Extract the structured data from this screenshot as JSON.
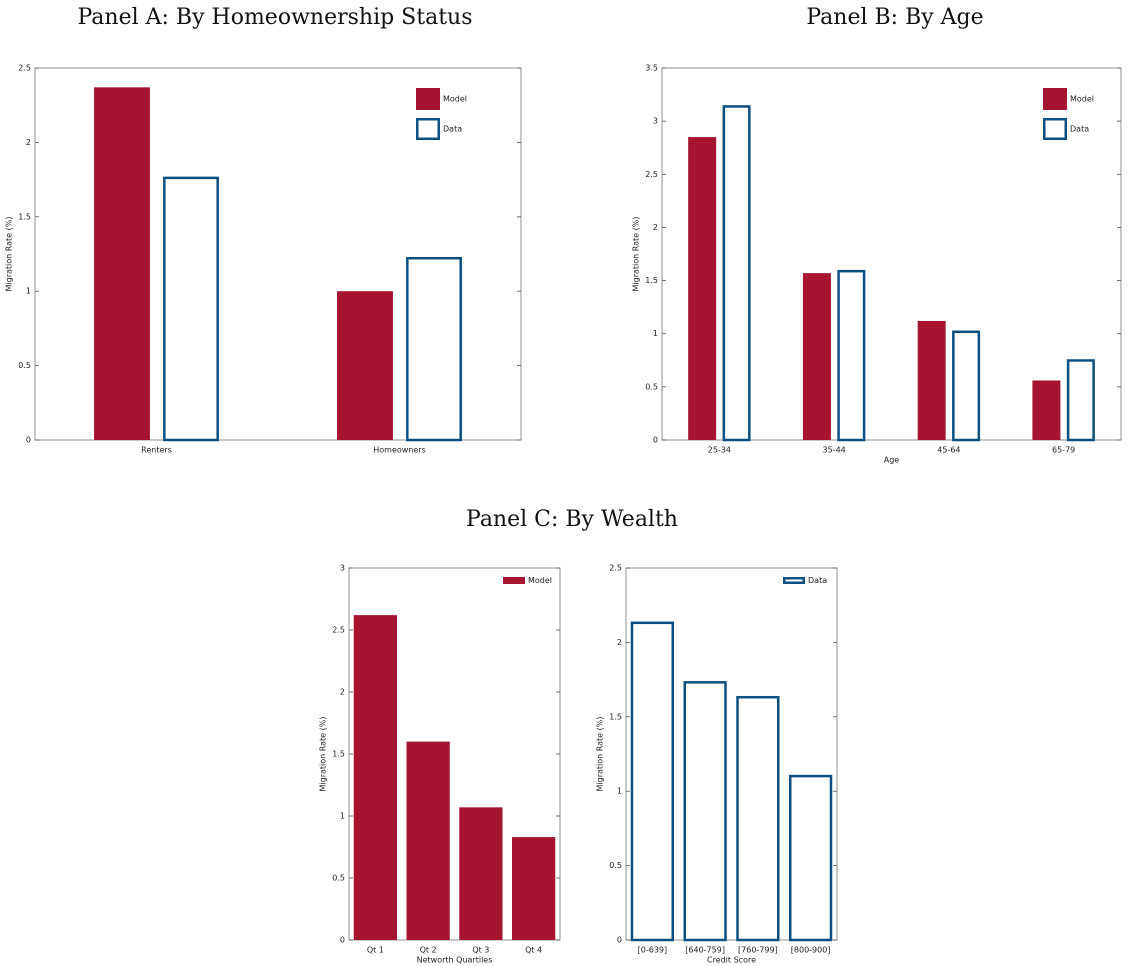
{
  "chart_data": [
    {
      "type": "bar",
      "title": "Panel A: By Homeownership Status",
      "ylabel": "Migration Rate (%)",
      "categories": [
        "Renters",
        "Homeowners"
      ],
      "series": [
        {
          "name": "Model",
          "color": "#a51431",
          "fill": true,
          "values": [
            2.37,
            1.0
          ]
        },
        {
          "name": "Data",
          "color": "#0d4f80",
          "fill": false,
          "values": [
            1.77,
            1.23
          ]
        }
      ],
      "ylim": [
        0,
        2.5
      ],
      "yticks": [
        0,
        0.5,
        1,
        1.5,
        2,
        2.5
      ],
      "legend": "upper right"
    },
    {
      "type": "bar",
      "title": "Panel B: By Age",
      "ylabel": "Migration Rate (%)",
      "xlabel": "Age",
      "categories": [
        "25-34",
        "35-44",
        "45-64",
        "65-79"
      ],
      "series": [
        {
          "name": "Model",
          "color": "#a51431",
          "fill": true,
          "values": [
            2.85,
            1.57,
            1.12,
            0.56
          ]
        },
        {
          "name": "Data",
          "color": "#0d4f80",
          "fill": false,
          "values": [
            3.15,
            1.6,
            1.03,
            0.76
          ]
        }
      ],
      "ylim": [
        0,
        3.5
      ],
      "yticks": [
        0,
        0.5,
        1,
        1.5,
        2,
        2.5,
        3,
        3.5
      ],
      "legend": "upper right"
    },
    {
      "type": "bar",
      "title": "Panel C: By Wealth",
      "ylabel": "Migration Rate (%)",
      "xlabel": "Networth Quartiles",
      "categories": [
        "Qt 1",
        "Qt 2",
        "Qt 3",
        "Qt 4"
      ],
      "series": [
        {
          "name": "Model",
          "color": "#a51431",
          "fill": true,
          "values": [
            2.62,
            1.6,
            1.07,
            0.83
          ]
        }
      ],
      "ylim": [
        0,
        3
      ],
      "yticks": [
        0,
        0.5,
        1,
        1.5,
        2,
        2.5,
        3
      ],
      "legend": "upper right"
    },
    {
      "type": "bar",
      "ylabel": "Migration Rate (%)",
      "xlabel": "Credit Score",
      "categories": [
        "[0-639]",
        "[640-759]",
        "[760-799]",
        "[800-900]"
      ],
      "series": [
        {
          "name": "Data",
          "color": "#0d4f80",
          "fill": false,
          "values": [
            2.14,
            1.74,
            1.64,
            1.11
          ]
        }
      ],
      "ylim": [
        0,
        2.5
      ],
      "yticks": [
        0,
        0.5,
        1,
        1.5,
        2,
        2.5
      ],
      "legend": "upper right"
    }
  ]
}
